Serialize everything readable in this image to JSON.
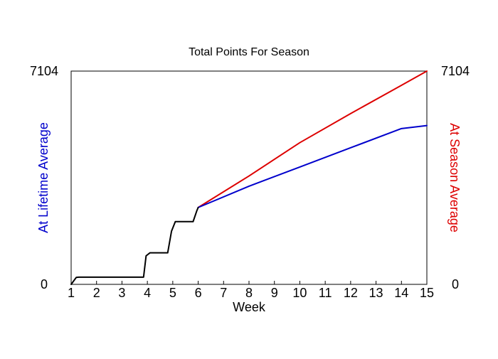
{
  "chart_data": {
    "type": "line",
    "title": "Total Points For Season",
    "xlabel": "Week",
    "ylabel_left": "At Lifetime Average",
    "ylabel_right": "At Season Average",
    "xlim": [
      1,
      15
    ],
    "ylim": [
      0,
      7104
    ],
    "x_ticks": [
      1,
      2,
      3,
      4,
      5,
      6,
      7,
      8,
      9,
      10,
      11,
      12,
      13,
      14,
      15
    ],
    "y_tick_labels_left": [
      "0",
      "7104"
    ],
    "y_tick_labels_right": [
      "0",
      "7104"
    ],
    "grid": false,
    "colors": {
      "actual": "#000000",
      "lifetime": "#0000cc",
      "season": "#dd0000",
      "left_label": "#0000cc",
      "right_label": "#dd0000",
      "axes": "#000000"
    },
    "series": [
      {
        "key": "actual",
        "points": [
          [
            1.0,
            0
          ],
          [
            1.2,
            230
          ],
          [
            1.3,
            240
          ],
          [
            2.0,
            240
          ],
          [
            3.0,
            240
          ],
          [
            3.85,
            240
          ],
          [
            3.95,
            950
          ],
          [
            4.1,
            1050
          ],
          [
            4.8,
            1050
          ],
          [
            4.95,
            1770
          ],
          [
            5.1,
            2090
          ],
          [
            5.8,
            2090
          ],
          [
            5.95,
            2460
          ],
          [
            6.0,
            2560
          ]
        ]
      },
      {
        "key": "lifetime",
        "points": [
          [
            6.0,
            2560
          ],
          [
            8.0,
            3270
          ],
          [
            10.0,
            3910
          ],
          [
            12.0,
            4550
          ],
          [
            14.0,
            5190
          ],
          [
            15.0,
            5290
          ]
        ]
      },
      {
        "key": "season",
        "points": [
          [
            6.0,
            2560
          ],
          [
            8.0,
            3610
          ],
          [
            10.0,
            4720
          ],
          [
            12.0,
            5690
          ],
          [
            14.0,
            6630
          ],
          [
            15.0,
            7104
          ]
        ]
      }
    ]
  }
}
